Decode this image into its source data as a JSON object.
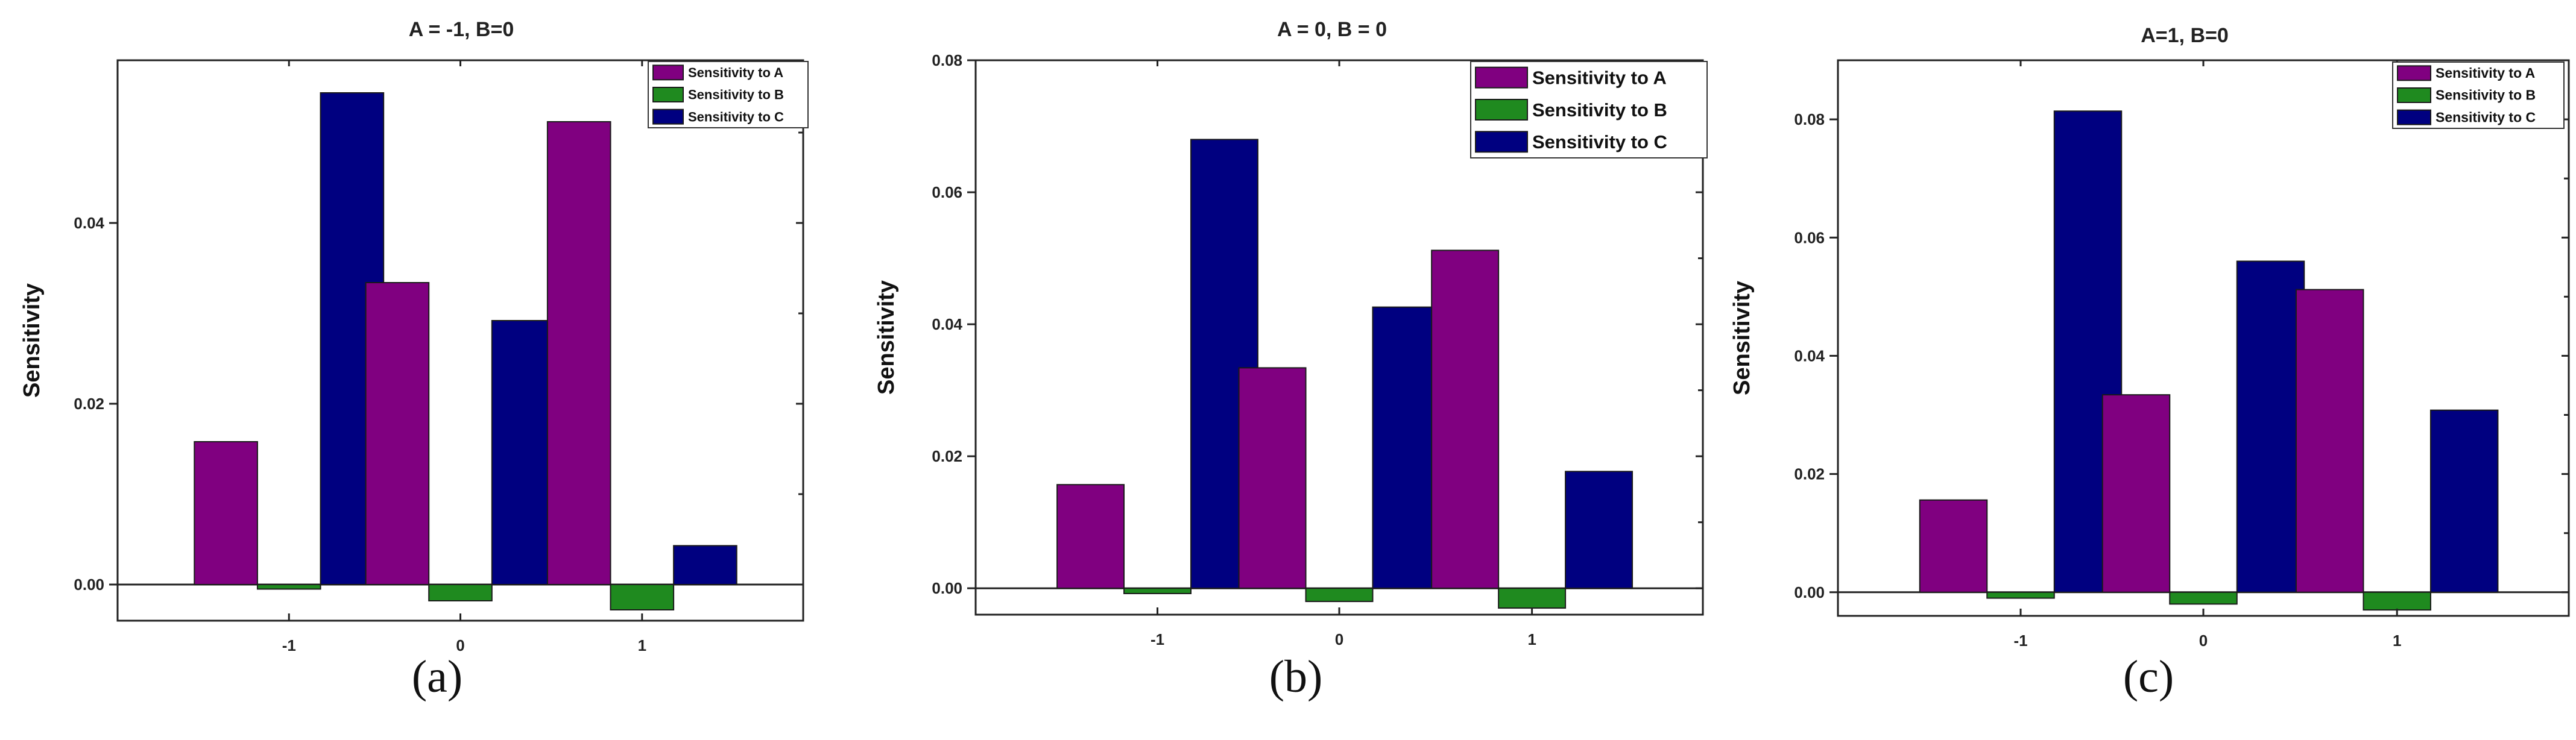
{
  "chart_data": [
    {
      "type": "bar",
      "title": "A = -1, B=0",
      "panel_label": "(a)",
      "xlabel": "",
      "ylabel": "Sensitivity",
      "categories": [
        "-1",
        "0",
        "1"
      ],
      "series": [
        {
          "name": "Sensitivity to A",
          "values": [
            0.0158,
            0.0334,
            0.0512
          ],
          "color": "#800080"
        },
        {
          "name": "Sensitivity to B",
          "values": [
            -0.0005,
            -0.0018,
            -0.0028
          ],
          "color": "#1f8a1f"
        },
        {
          "name": "Sensitivity to C",
          "values": [
            0.0544,
            0.0292,
            0.0043
          ],
          "color": "#000080"
        }
      ],
      "ylim": [
        -0.004,
        0.058
      ],
      "yticks": [
        0.0,
        0.02,
        0.04
      ],
      "ytick_labels": [
        "0.00",
        "0.02",
        "0.04"
      ],
      "legend_position": "top-right"
    },
    {
      "type": "bar",
      "title": "A = 0, B = 0",
      "panel_label": "(b)",
      "xlabel": "",
      "ylabel": "Sensitivity",
      "categories": [
        "-1",
        "0",
        "1"
      ],
      "series": [
        {
          "name": "Sensitivity to A",
          "values": [
            0.0157,
            0.0334,
            0.0512
          ],
          "color": "#800080"
        },
        {
          "name": "Sensitivity to B",
          "values": [
            -0.0008,
            -0.002,
            -0.003
          ],
          "color": "#1f8a1f"
        },
        {
          "name": "Sensitivity to C",
          "values": [
            0.068,
            0.0426,
            0.0177
          ],
          "color": "#000080"
        }
      ],
      "ylim": [
        -0.004,
        0.08
      ],
      "yticks": [
        0.0,
        0.02,
        0.04,
        0.06,
        0.08
      ],
      "ytick_labels": [
        "0.00",
        "0.02",
        "0.04",
        "0.06",
        "0.08"
      ],
      "legend_position": "top-right"
    },
    {
      "type": "bar",
      "title": "A=1, B=0",
      "panel_label": "(c)",
      "xlabel": "",
      "ylabel": "Sensitivity",
      "categories": [
        "-1",
        "0",
        "1"
      ],
      "series": [
        {
          "name": "Sensitivity to A",
          "values": [
            0.0156,
            0.0334,
            0.0512
          ],
          "color": "#800080"
        },
        {
          "name": "Sensitivity to B",
          "values": [
            -0.001,
            -0.002,
            -0.003
          ],
          "color": "#1f8a1f"
        },
        {
          "name": "Sensitivity to C",
          "values": [
            0.0814,
            0.056,
            0.0308
          ],
          "color": "#000080"
        }
      ],
      "ylim": [
        -0.004,
        0.09
      ],
      "yticks": [
        0.0,
        0.02,
        0.04,
        0.06,
        0.08
      ],
      "ytick_labels": [
        "0.00",
        "0.02",
        "0.04",
        "0.06",
        "0.08"
      ],
      "legend_position": "top-right"
    }
  ]
}
